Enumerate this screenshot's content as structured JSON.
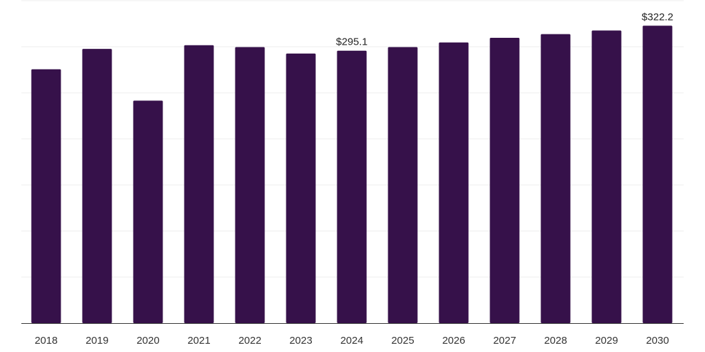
{
  "chart_data": {
    "type": "bar",
    "categories": [
      "2018",
      "2019",
      "2020",
      "2021",
      "2022",
      "2023",
      "2024",
      "2025",
      "2026",
      "2027",
      "2028",
      "2029",
      "2030"
    ],
    "values": [
      275,
      297,
      241,
      301,
      299,
      292,
      295.1,
      299,
      304,
      309,
      313,
      317,
      322.2
    ],
    "data_labels": [
      {
        "category": "2024",
        "text": "$295.1"
      },
      {
        "category": "2030",
        "text": "$322.2"
      }
    ],
    "ylim": [
      0,
      350
    ],
    "grid": true,
    "bar_color": "#36114a",
    "axis_color": "#333333",
    "grid_color": "#eeeeee"
  }
}
